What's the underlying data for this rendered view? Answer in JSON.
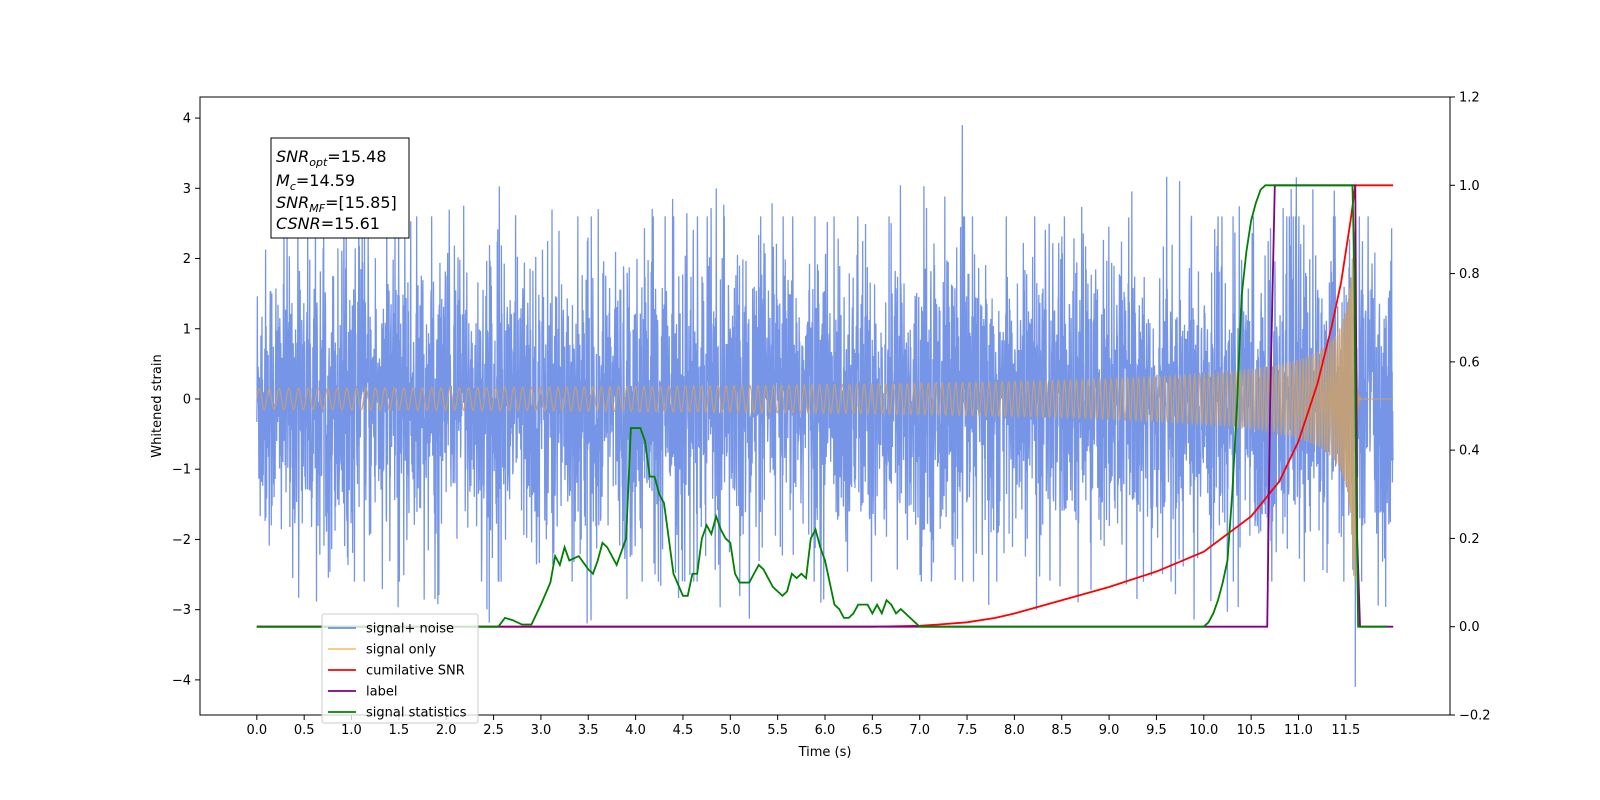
{
  "chart_data": {
    "type": "line",
    "xlabel": "Time (s)",
    "ylabel": "Whitened strain",
    "xlim": [
      -0.6,
      12.6
    ],
    "ylim": [
      -4.5,
      4.3
    ],
    "y2lim": [
      -0.2,
      1.2
    ],
    "x_ticks": [
      "0.0",
      "0.5",
      "1.0",
      "1.5",
      "2.0",
      "2.5",
      "3.0",
      "3.5",
      "4.0",
      "4.5",
      "5.0",
      "5.5",
      "6.0",
      "6.5",
      "7.0",
      "7.5",
      "8.0",
      "8.5",
      "9.0",
      "9.5",
      "10.0",
      "10.5",
      "11.0",
      "11.5"
    ],
    "y_ticks": [
      "4",
      "3",
      "2",
      "1",
      "0",
      "−1",
      "−2",
      "−3",
      "−4"
    ],
    "y2_ticks": [
      "1.2",
      "1.0",
      "0.8",
      "0.6",
      "0.4",
      "0.2",
      "0.0",
      "−0.2"
    ],
    "annotation": {
      "snr_opt": {
        "var": "SNR",
        "sub": "opt",
        "value": "=15.48"
      },
      "mc": {
        "var": "M",
        "sub": "c",
        "value": "=14.59"
      },
      "snr_mf": {
        "var": "SNR",
        "sub": "MF",
        "value": "=[15.85]"
      },
      "csnr": {
        "var": "CSNR",
        "sub": "",
        "value": "=15.61"
      }
    },
    "legend": {
      "position": "lower-left",
      "entries": [
        {
          "label": "signal+ noise",
          "color": "#6f8fe6"
        },
        {
          "label": "signal only",
          "color": "#ffc270"
        },
        {
          "label": "cumilative SNR",
          "color": "#ff0000"
        },
        {
          "label": "label",
          "color": "#800080"
        },
        {
          "label": "signal statistics",
          "color": "#008000"
        }
      ]
    },
    "series": [
      {
        "name": "signal+ noise",
        "axis": "left",
        "color": "#6f8fe6",
        "kind": "noise",
        "x_range": [
          0.0,
          12.0
        ],
        "amplitude_sigma": 1.0,
        "typical_extent": [
          -2.6,
          2.6
        ],
        "max_peak": {
          "x": 7.45,
          "y": 3.9
        },
        "min_peak": {
          "x": 11.6,
          "y": -4.1
        }
      },
      {
        "name": "signal only",
        "axis": "left",
        "color": "#c8a070",
        "kind": "chirp",
        "x_range": [
          0.0,
          11.6
        ],
        "peak_amplitude": 2.6,
        "merger_time": 11.6
      },
      {
        "name": "cumilative SNR",
        "axis": "right",
        "x": [
          0.0,
          6.5,
          7.0,
          7.2,
          7.5,
          7.8,
          8.0,
          8.5,
          9.0,
          9.5,
          10.0,
          10.5,
          10.8,
          11.0,
          11.2,
          11.35,
          11.45,
          11.55,
          11.6,
          11.65,
          12.0
        ],
        "y": [
          0.0,
          0.0,
          0.002,
          0.005,
          0.01,
          0.02,
          0.03,
          0.06,
          0.09,
          0.125,
          0.17,
          0.25,
          0.33,
          0.42,
          0.55,
          0.68,
          0.78,
          0.92,
          1.0,
          1.0,
          1.0
        ]
      },
      {
        "name": "label",
        "axis": "right",
        "x": [
          0.0,
          10.67,
          10.7,
          10.75,
          11.6,
          11.62,
          11.65,
          12.0
        ],
        "y": [
          0.0,
          0.0,
          0.5,
          1.0,
          1.0,
          0.2,
          0.0,
          0.0
        ]
      },
      {
        "name": "signal statistics",
        "axis": "right",
        "x": [
          0.0,
          2.55,
          2.62,
          2.7,
          2.8,
          2.9,
          3.0,
          3.1,
          3.15,
          3.2,
          3.25,
          3.3,
          3.4,
          3.5,
          3.55,
          3.6,
          3.65,
          3.7,
          3.8,
          3.85,
          3.9,
          3.95,
          4.0,
          4.05,
          4.1,
          4.15,
          4.2,
          4.25,
          4.3,
          4.35,
          4.4,
          4.5,
          4.55,
          4.6,
          4.65,
          4.7,
          4.75,
          4.8,
          4.85,
          4.9,
          4.95,
          5.0,
          5.05,
          5.1,
          5.15,
          5.2,
          5.25,
          5.3,
          5.35,
          5.4,
          5.45,
          5.5,
          5.55,
          5.6,
          5.65,
          5.7,
          5.75,
          5.8,
          5.85,
          5.9,
          5.95,
          6.0,
          6.05,
          6.1,
          6.15,
          6.2,
          6.25,
          6.3,
          6.35,
          6.4,
          6.45,
          6.5,
          6.55,
          6.6,
          6.65,
          6.7,
          6.75,
          6.8,
          6.85,
          6.9,
          6.95,
          7.0,
          7.1,
          7.2,
          7.3,
          7.5,
          8.0,
          9.5,
          9.8,
          10.0,
          10.05,
          10.1,
          10.15,
          10.2,
          10.25,
          10.3,
          10.35,
          10.4,
          10.45,
          10.5,
          10.55,
          10.6,
          10.65,
          10.7,
          10.75,
          10.8,
          10.9,
          11.0,
          11.2,
          11.55,
          11.57,
          11.59,
          11.61,
          11.63,
          11.65,
          11.94
        ],
        "y": [
          0.0,
          0.0,
          0.02,
          0.015,
          0.005,
          0.005,
          0.05,
          0.1,
          0.16,
          0.14,
          0.18,
          0.15,
          0.16,
          0.13,
          0.12,
          0.15,
          0.19,
          0.18,
          0.14,
          0.17,
          0.2,
          0.45,
          0.45,
          0.45,
          0.42,
          0.34,
          0.34,
          0.3,
          0.28,
          0.2,
          0.12,
          0.07,
          0.07,
          0.12,
          0.12,
          0.2,
          0.23,
          0.21,
          0.25,
          0.22,
          0.2,
          0.19,
          0.12,
          0.1,
          0.1,
          0.1,
          0.12,
          0.14,
          0.13,
          0.11,
          0.09,
          0.08,
          0.07,
          0.08,
          0.12,
          0.11,
          0.12,
          0.11,
          0.2,
          0.22,
          0.18,
          0.15,
          0.1,
          0.05,
          0.04,
          0.02,
          0.02,
          0.03,
          0.05,
          0.05,
          0.05,
          0.03,
          0.05,
          0.03,
          0.06,
          0.05,
          0.03,
          0.04,
          0.03,
          0.02,
          0.01,
          0.0,
          0.0,
          0.0,
          0.0,
          0.0,
          0.0,
          0.0,
          0.0,
          0.0,
          0.01,
          0.03,
          0.06,
          0.1,
          0.15,
          0.3,
          0.5,
          0.75,
          0.85,
          0.92,
          0.96,
          0.99,
          1.0,
          1.0,
          1.0,
          1.0,
          1.0,
          1.0,
          1.0,
          1.0,
          1.0,
          0.8,
          0.3,
          0.0,
          0.0,
          0.0
        ]
      }
    ]
  }
}
